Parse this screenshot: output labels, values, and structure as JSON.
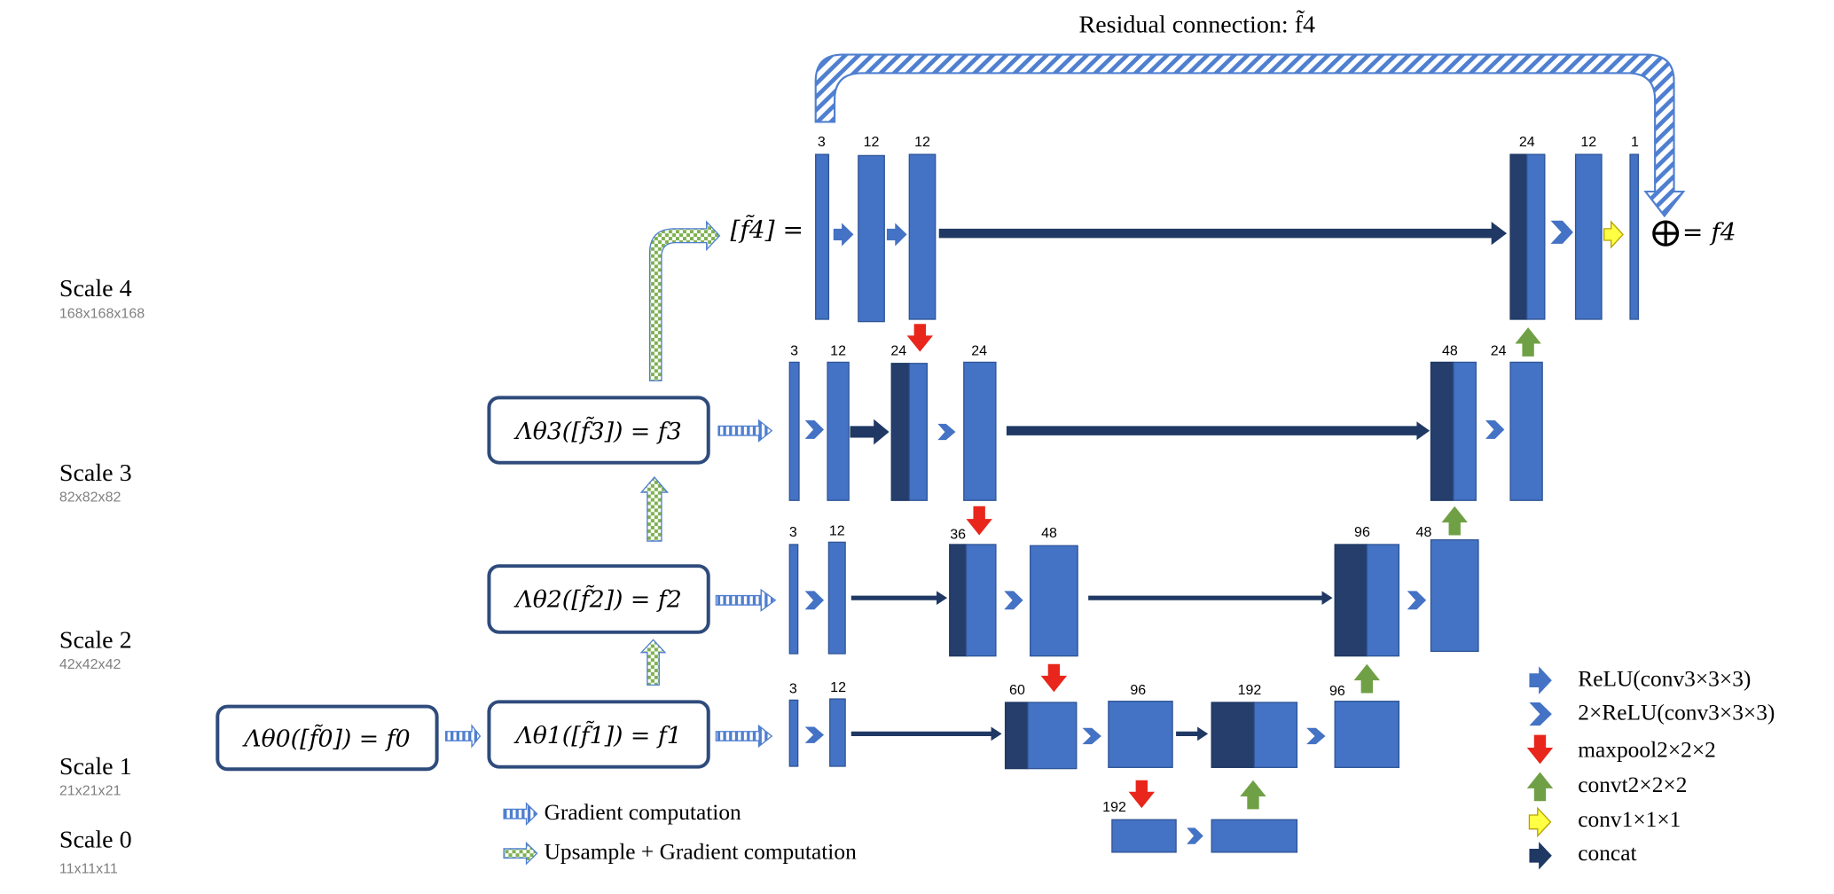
{
  "diagram": {
    "title": "Residual connection: f̃4",
    "scales": [
      {
        "name": "Scale 4",
        "dim": "168x168x168"
      },
      {
        "name": "Scale 3",
        "dim": "82x82x82"
      },
      {
        "name": "Scale 2",
        "dim": "42x42x42"
      },
      {
        "name": "Scale 1",
        "dim": "21x21x21"
      },
      {
        "name": "Scale 0",
        "dim": "11x11x11"
      }
    ],
    "formulas": {
      "f0": "Λθ0([f̃0]) = f0",
      "f1": "Λθ1([f̃1]) = f1",
      "f2": "Λθ2([f̃2]) = f2",
      "f3": "Λθ3([f̃3]) = f3",
      "f4_input": "[f̃4] =",
      "f4_output": "= f4"
    },
    "channels": {
      "s4": [
        "3",
        "12",
        "12",
        "24",
        "12",
        "1"
      ],
      "s3": [
        "3",
        "12",
        "24",
        "24",
        "48",
        "24"
      ],
      "s2": [
        "3",
        "12",
        "36",
        "48",
        "96",
        "48"
      ],
      "s1": [
        "3",
        "12",
        "60",
        "96",
        "192",
        "96"
      ],
      "s0": [
        "192"
      ]
    },
    "legend_left": [
      {
        "label": "Gradient computation",
        "icon": "hatched-blue-arrow-icon"
      },
      {
        "label": "Upsample + Gradient computation",
        "icon": "hatched-green-arrow-icon"
      }
    ],
    "legend_right": [
      {
        "label": "ReLU(conv3×3×3)",
        "icon": "blue-arrow-icon"
      },
      {
        "label": "2×ReLU(conv3×3×3)",
        "icon": "blue-chevron-icon"
      },
      {
        "label": "maxpool2×2×2",
        "icon": "red-down-arrow-icon"
      },
      {
        "label": "convt2×2×2",
        "icon": "green-up-arrow-icon"
      },
      {
        "label": "conv1×1×1",
        "icon": "yellow-arrow-icon"
      },
      {
        "label": "concat",
        "icon": "navy-arrow-icon"
      }
    ],
    "colors": {
      "block": "#4472c4",
      "block_dark": "#253e6b",
      "arrow_navy": "#1f3864",
      "maxpool": "#e8261b",
      "convt": "#70a046",
      "conv1": "#ffff44",
      "box_border": "#2f4b7c"
    }
  }
}
